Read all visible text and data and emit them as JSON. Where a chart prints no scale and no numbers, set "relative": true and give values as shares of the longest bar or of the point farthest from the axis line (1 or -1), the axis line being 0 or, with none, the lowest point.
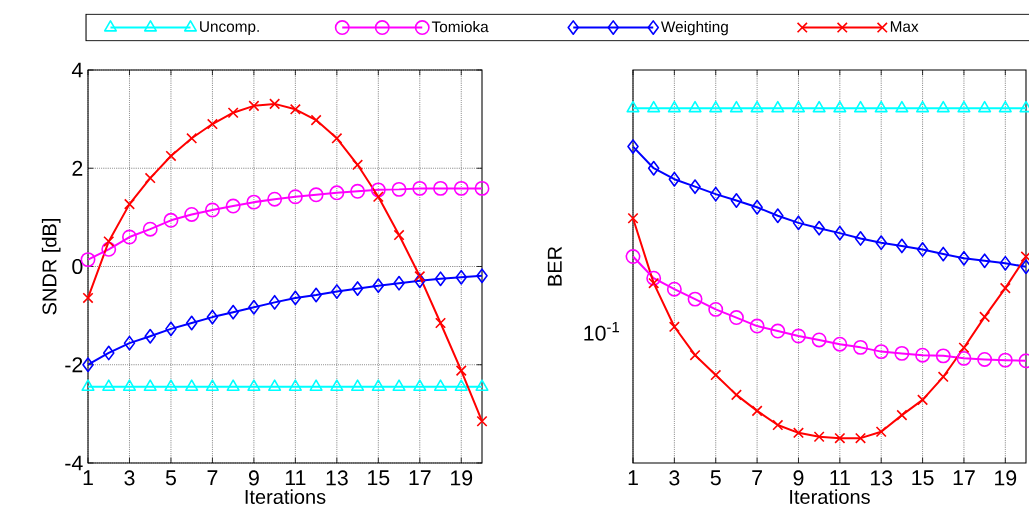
{
  "chart_data": [
    {
      "type": "line",
      "xlabel": "Iterations",
      "ylabel": "SNDR [dB]",
      "x": [
        1,
        2,
        3,
        4,
        5,
        6,
        7,
        8,
        9,
        10,
        11,
        12,
        13,
        14,
        15,
        16,
        17,
        18,
        19,
        20
      ],
      "xlim": [
        1,
        20
      ],
      "xticks": [
        1,
        3,
        5,
        7,
        9,
        11,
        13,
        15,
        17,
        19
      ],
      "ylim": [
        -4,
        4
      ],
      "yticks": [
        -4,
        -2,
        0,
        2,
        4
      ],
      "grid": true,
      "legend": "top",
      "line_style": "solid",
      "series": [
        {
          "name": "Uncomp.",
          "color": "#00ffff",
          "marker": "triangle",
          "values": [
            -2.45,
            -2.45,
            -2.45,
            -2.45,
            -2.45,
            -2.45,
            -2.45,
            -2.45,
            -2.45,
            -2.45,
            -2.45,
            -2.45,
            -2.45,
            -2.45,
            -2.45,
            -2.45,
            -2.45,
            -2.45,
            -2.45,
            -2.45
          ]
        },
        {
          "name": "Tomioka",
          "color": "#ff00ff",
          "marker": "circle",
          "values": [
            0.14,
            0.35,
            0.6,
            0.76,
            0.94,
            1.06,
            1.15,
            1.23,
            1.31,
            1.37,
            1.42,
            1.46,
            1.5,
            1.53,
            1.56,
            1.57,
            1.59,
            1.59,
            1.59,
            1.59
          ]
        },
        {
          "name": "Weighting",
          "color": "#0000ff",
          "marker": "diamond",
          "values": [
            -2.0,
            -1.76,
            -1.56,
            -1.42,
            -1.27,
            -1.15,
            -1.03,
            -0.93,
            -0.83,
            -0.73,
            -0.64,
            -0.58,
            -0.51,
            -0.45,
            -0.39,
            -0.34,
            -0.29,
            -0.25,
            -0.22,
            -0.19
          ]
        },
        {
          "name": "Max",
          "color": "#ff0000",
          "marker": "cross",
          "values": [
            -0.64,
            0.51,
            1.27,
            1.8,
            2.25,
            2.61,
            2.9,
            3.13,
            3.27,
            3.31,
            3.2,
            2.98,
            2.61,
            2.07,
            1.42,
            0.64,
            -0.2,
            -1.15,
            -2.12,
            -3.15
          ]
        }
      ]
    },
    {
      "type": "line",
      "xlabel": "Iterations",
      "ylabel": "BER",
      "relative": true,
      "annotations": [
        "10$^{-1}$"
      ],
      "x": [
        1,
        2,
        3,
        4,
        5,
        6,
        7,
        8,
        9,
        10,
        11,
        12,
        13,
        14,
        15,
        16,
        17,
        18,
        19,
        20
      ],
      "xlim": [
        1,
        20
      ],
      "xticks": [
        1,
        3,
        5,
        7,
        9,
        11,
        13,
        15,
        17,
        19
      ],
      "grid": true,
      "line_style": "solid",
      "series": [
        {
          "color": "#00ffff",
          "marker": "triangle",
          "values": [
            1,
            1,
            1,
            1,
            1,
            1,
            1,
            1,
            1,
            1,
            1,
            1,
            1,
            1,
            1,
            1,
            1,
            1,
            1,
            1
          ]
        },
        {
          "color": "#ff00ff",
          "marker": "circle",
          "values": [
            0.582,
            0.521,
            0.49,
            0.462,
            0.433,
            0.41,
            0.386,
            0.372,
            0.358,
            0.347,
            0.335,
            0.326,
            0.314,
            0.309,
            0.304,
            0.302,
            0.295,
            0.292,
            0.29,
            0.288
          ]
        },
        {
          "color": "#0000ff",
          "marker": "diamond",
          "values": [
            0.892,
            0.831,
            0.8,
            0.779,
            0.758,
            0.74,
            0.721,
            0.697,
            0.677,
            0.662,
            0.648,
            0.633,
            0.621,
            0.612,
            0.602,
            0.589,
            0.577,
            0.57,
            0.563,
            0.553
          ]
        },
        {
          "color": "#ff0000",
          "marker": "cross",
          "values": [
            0.69,
            0.507,
            0.384,
            0.304,
            0.248,
            0.192,
            0.147,
            0.107,
            0.085,
            0.074,
            0.07,
            0.07,
            0.088,
            0.135,
            0.178,
            0.243,
            0.325,
            0.412,
            0.493,
            0.582
          ]
        }
      ]
    }
  ]
}
